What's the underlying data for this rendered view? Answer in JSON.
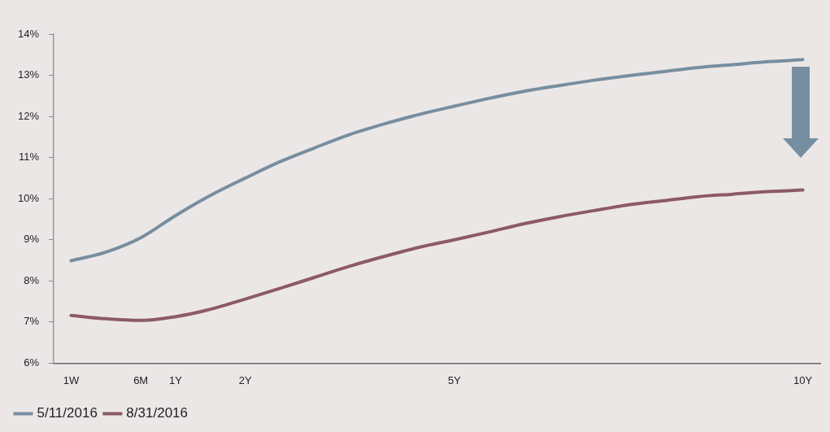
{
  "chart_data": {
    "type": "line",
    "categories": [
      "1W",
      null,
      "6M",
      "1Y",
      null,
      "2Y",
      null,
      null,
      null,
      null,
      null,
      "5Y",
      null,
      null,
      null,
      null,
      null,
      null,
      null,
      null,
      null,
      "10Y"
    ],
    "series": [
      {
        "name": "5/11/2016",
        "color": "#778ea0",
        "values": [
          8.49,
          8.7,
          9.05,
          9.59,
          10.08,
          10.5,
          10.9,
          11.24,
          11.56,
          11.82,
          12.05,
          12.25,
          12.44,
          12.61,
          12.75,
          12.88,
          12.99,
          13.09,
          13.19,
          13.26,
          13.33,
          13.38
        ]
      },
      {
        "name": "8/31/2016",
        "color": "#8c5a66",
        "values": [
          7.16,
          7.08,
          7.04,
          7.13,
          7.31,
          7.56,
          7.82,
          8.09,
          8.36,
          8.6,
          8.82,
          9.0,
          9.19,
          9.39,
          9.56,
          9.71,
          9.85,
          9.95,
          10.05,
          10.11,
          10.17,
          10.21
        ]
      }
    ],
    "ylim": [
      6,
      14
    ],
    "yticks": [
      {
        "value": 6,
        "label": "6%"
      },
      {
        "value": 7,
        "label": "7%"
      },
      {
        "value": 8,
        "label": "8%"
      },
      {
        "value": 9,
        "label": "9%"
      },
      {
        "value": 10,
        "label": "10%"
      },
      {
        "value": 11,
        "label": "11%"
      },
      {
        "value": 12,
        "label": "12%"
      },
      {
        "value": 13,
        "label": "13%"
      },
      {
        "value": 14,
        "label": "14%"
      }
    ],
    "grid": false,
    "legend": "bottom",
    "marker": "none",
    "line_style": "solid"
  }
}
